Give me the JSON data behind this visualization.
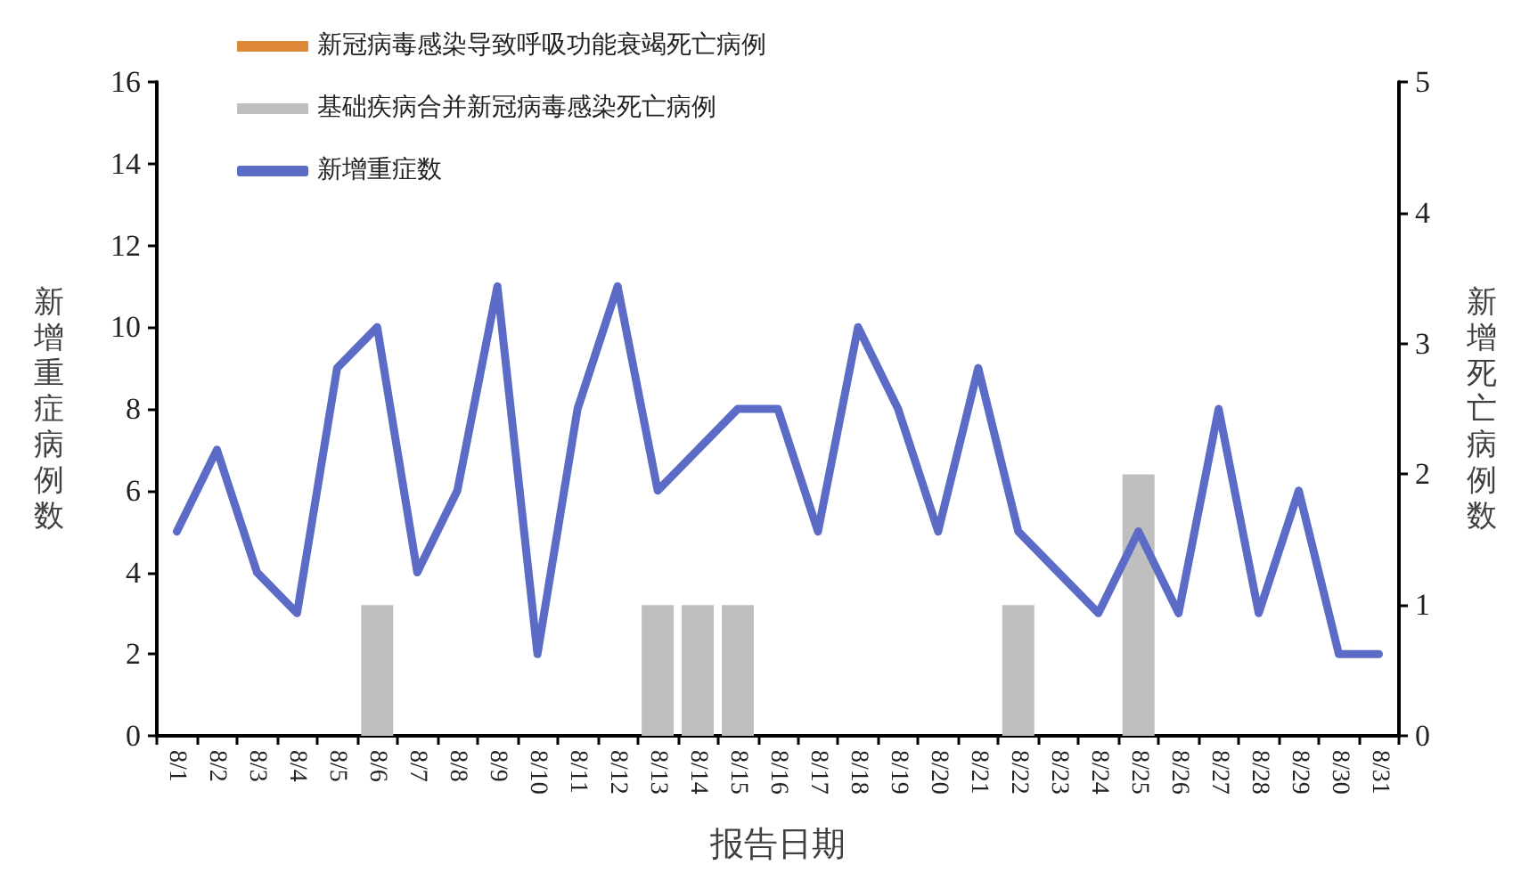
{
  "chart_data": {
    "type": "bar",
    "stacked": true,
    "legend": "top left",
    "marker": "none",
    "line_style": "solid",
    "xlabel": "报告日期",
    "ylabel": "新增重症病例数",
    "y2label": "新增死亡病例数",
    "categories": [
      "8/1",
      "8/2",
      "8/3",
      "8/4",
      "8/5",
      "8/6",
      "8/7",
      "8/8",
      "8/9",
      "8/10",
      "8/11",
      "8/12",
      "8/13",
      "8/14",
      "8/15",
      "8/16",
      "8/17",
      "8/18",
      "8/19",
      "8/20",
      "8/21",
      "8/22",
      "8/23",
      "8/24",
      "8/25",
      "8/26",
      "8/27",
      "8/28",
      "8/29",
      "8/30",
      "8/31"
    ],
    "ylim": [
      0,
      16
    ],
    "yticks": [
      0,
      2,
      4,
      6,
      8,
      10,
      12,
      14,
      16
    ],
    "y2lim": [
      0,
      5
    ],
    "y2ticks": [
      0,
      1,
      2,
      3,
      4,
      5
    ],
    "series": [
      {
        "name": "新冠病毒感染导致呼吸功能衰竭死亡病例",
        "axis": "y2",
        "color": "#e0883a",
        "values": [
          0,
          0,
          0,
          0,
          0,
          0,
          0,
          0,
          0,
          0,
          0,
          0,
          0,
          0,
          0,
          0,
          0,
          0,
          0,
          0,
          0,
          0,
          0,
          0,
          0,
          0,
          0,
          0,
          0,
          0,
          0
        ]
      },
      {
        "name": "基础疾病合并新冠病毒感染死亡病例",
        "axis": "y2",
        "color": "#bfbfbf",
        "values": [
          0,
          0,
          0,
          0,
          0,
          1,
          0,
          0,
          0,
          0,
          0,
          0,
          1,
          1,
          1,
          0,
          0,
          0,
          0,
          0,
          0,
          1,
          0,
          0,
          2,
          0,
          0,
          0,
          0,
          0,
          0
        ]
      },
      {
        "name": "新增重症数",
        "type": "line",
        "color": "#5b6bc6",
        "values": [
          5,
          7,
          4,
          3,
          9,
          10,
          4,
          6,
          11,
          2,
          8,
          11,
          6,
          7,
          8,
          8,
          5,
          10,
          8,
          5,
          9,
          5,
          4,
          3,
          5,
          3,
          8,
          3,
          6,
          2,
          2
        ]
      }
    ]
  }
}
